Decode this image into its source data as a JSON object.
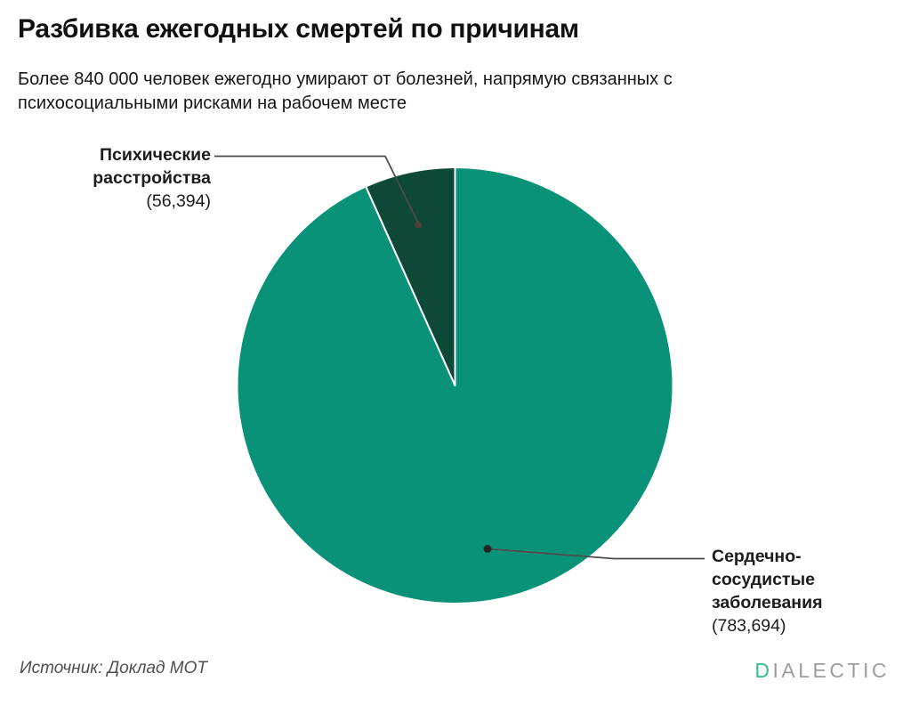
{
  "header": {
    "title": "Разбивка ежегодных смертей по причинам",
    "subtitle": "Более 840 000 человек ежегодно умирают от болезней, напрямую связанных с психосоциальными рисками на рабочем месте"
  },
  "chart_data": {
    "type": "pie",
    "title": "Разбивка ежегодных смертей по причинам",
    "total": 840088,
    "direction": "clockwise-from-top",
    "legend_position": "callout-labels",
    "slices": [
      {
        "id": "cardiovascular",
        "label": "Сердечно-сосудистые заболевания",
        "value": 783694,
        "value_display": "(783,694)",
        "percent": 93.3,
        "color": "#0a9279"
      },
      {
        "id": "mental",
        "label": "Психические расстройства",
        "value": 56394,
        "value_display": "(56,394)",
        "percent": 6.7,
        "color": "#0d4936"
      }
    ]
  },
  "footer": {
    "source": "Источник: Доклад МОТ",
    "logo_d": "D",
    "logo_rest": "IALECTIC"
  },
  "colors": {
    "teal": "#0a9279",
    "dark_green": "#0d4936",
    "slice_divider": "#ffffff",
    "leader_line": "#4d4d4d",
    "leader_dot_dark_slice": "#54413a",
    "leader_dot_teal_slice": "#262626",
    "logo_green": "#35bd8d",
    "logo_gray": "#9d9d9d"
  }
}
